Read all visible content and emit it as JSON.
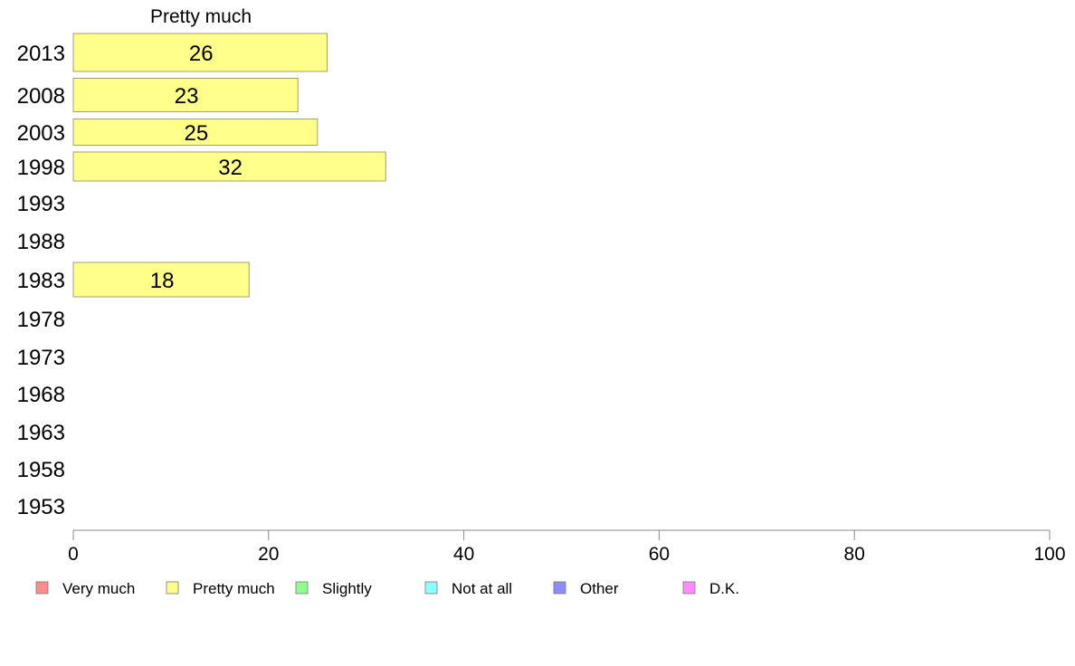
{
  "chart_data": {
    "type": "bar",
    "orientation": "horizontal",
    "title": "Pretty much",
    "categories": [
      "2013",
      "2008",
      "2003",
      "1998",
      "1993",
      "1988",
      "1983",
      "1978",
      "1973",
      "1968",
      "1963",
      "1958",
      "1953"
    ],
    "series": [
      {
        "name": "Pretty much",
        "values": [
          26,
          23,
          25,
          32,
          null,
          null,
          18,
          null,
          null,
          null,
          null,
          null,
          null
        ]
      }
    ],
    "xlim": [
      0,
      100
    ],
    "xticks": [
      0,
      20,
      40,
      60,
      80,
      100
    ],
    "xlabel": "",
    "ylabel": "",
    "grid": false,
    "legend_position": "bottom",
    "legend": [
      {
        "label": "Very much",
        "color": "#ff8c8c"
      },
      {
        "label": "Pretty much",
        "color": "#ffff8c"
      },
      {
        "label": "Slightly",
        "color": "#8cff8c"
      },
      {
        "label": "Not at all",
        "color": "#8cffff"
      },
      {
        "label": "Other",
        "color": "#8c8cff"
      },
      {
        "label": "D.K.",
        "color": "#ff8cff"
      }
    ],
    "bar_color": "#ffff8c",
    "bar_border_color": "#a0a070"
  }
}
